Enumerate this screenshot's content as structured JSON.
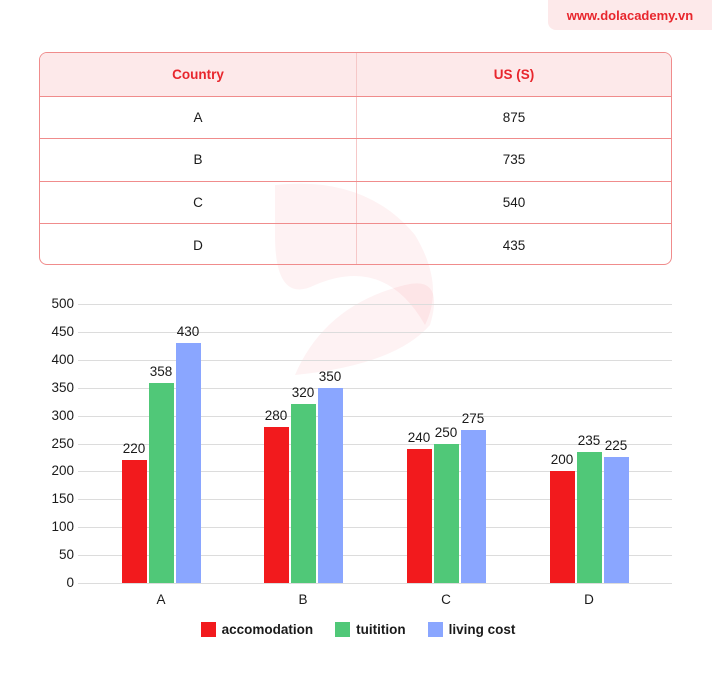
{
  "brand": {
    "url_text": "www.dolacademy.vn"
  },
  "table": {
    "headers": [
      "Country",
      "US (S)"
    ],
    "rows": [
      [
        "A",
        "875"
      ],
      [
        "B",
        "735"
      ],
      [
        "C",
        "540"
      ],
      [
        "D",
        "435"
      ]
    ]
  },
  "colors": {
    "accent": "#e8262d",
    "accomodation": "#f21a1d",
    "tuitition": "#50c878",
    "living_cost": "#8aa6ff"
  },
  "chart_data": {
    "type": "bar",
    "title": "",
    "xlabel": "",
    "ylabel": "",
    "categories": [
      "A",
      "B",
      "C",
      "D"
    ],
    "series": [
      {
        "name": "accomodation",
        "values": [
          220,
          280,
          240,
          200
        ],
        "color": "#f21a1d"
      },
      {
        "name": "tuitition",
        "values": [
          358,
          320,
          250,
          235
        ],
        "color": "#50c878"
      },
      {
        "name": "living cost",
        "values": [
          430,
          350,
          275,
          225
        ],
        "color": "#8aa6ff"
      }
    ],
    "ylim": [
      0,
      500
    ],
    "yticks": [
      "0",
      "50",
      "100",
      "150",
      "200",
      "250",
      "300",
      "350",
      "400",
      "450",
      "500"
    ],
    "grid": true,
    "legend_position": "bottom",
    "data_labels": true
  },
  "legend": {
    "items": [
      {
        "label": "accomodation",
        "color": "#f21a1d"
      },
      {
        "label": "tuitition",
        "color": "#50c878"
      },
      {
        "label": "living cost",
        "color": "#8aa6ff"
      }
    ]
  }
}
